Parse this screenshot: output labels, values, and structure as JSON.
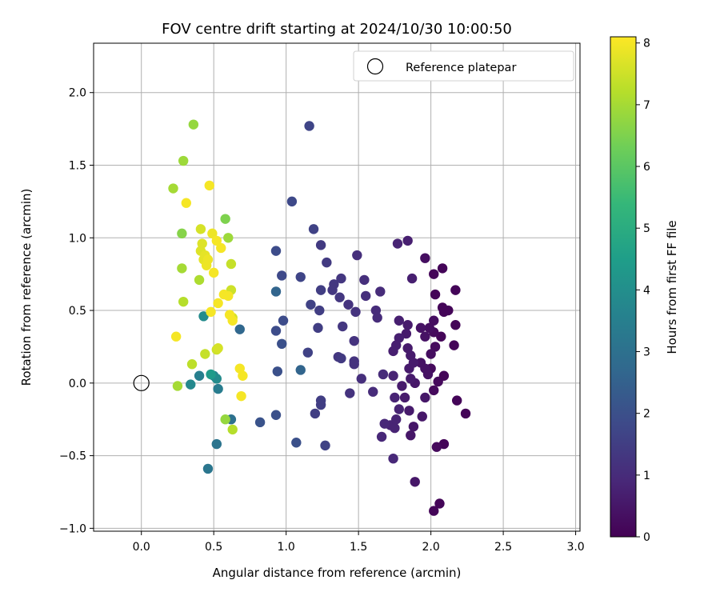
{
  "chart_data": {
    "type": "scatter",
    "title": "FOV centre drift starting at 2024/10/30 10:00:50",
    "xlabel": "Angular distance from reference (arcmin)",
    "ylabel": "Rotation from reference (arcmin)",
    "xlim": [
      -0.33,
      3.03
    ],
    "ylim": [
      -1.02,
      2.34
    ],
    "xticks": [
      "0.0",
      "0.5",
      "1.0",
      "1.5",
      "2.0",
      "2.5",
      "3.0"
    ],
    "yticks": [
      "−1.0",
      "−0.5",
      "0.0",
      "0.5",
      "1.0",
      "1.5",
      "2.0"
    ],
    "grid": true,
    "legend": {
      "position": "top-right",
      "entries": [
        "Reference platepar"
      ]
    },
    "reference": {
      "x": 0.0,
      "y": 0.0
    },
    "colorbar": {
      "label": "Hours from first FF file",
      "colormap": "viridis",
      "range": [
        0,
        8.1
      ],
      "ticks": [
        "0",
        "1",
        "2",
        "3",
        "4",
        "5",
        "6",
        "7",
        "8"
      ]
    },
    "colormap_stops": [
      "#440154",
      "#482878",
      "#3e4989",
      "#31688e",
      "#26828e",
      "#1f9e89",
      "#35b779",
      "#6ece58",
      "#b5de2b",
      "#fde725"
    ],
    "points": [
      {
        "x": 2.02,
        "y": -0.88,
        "h": 0.1
      },
      {
        "x": 2.06,
        "y": -0.83,
        "h": 0.1
      },
      {
        "x": 2.09,
        "y": -0.42,
        "h": 0.1
      },
      {
        "x": 2.04,
        "y": -0.44,
        "h": 0.2
      },
      {
        "x": 2.24,
        "y": -0.21,
        "h": 0.1
      },
      {
        "x": 2.18,
        "y": -0.12,
        "h": 0.1
      },
      {
        "x": 2.02,
        "y": -0.05,
        "h": 0.2
      },
      {
        "x": 2.05,
        "y": 0.01,
        "h": 0.2
      },
      {
        "x": 2.09,
        "y": 0.05,
        "h": 0.1
      },
      {
        "x": 2.0,
        "y": 0.1,
        "h": 0.2
      },
      {
        "x": 2.03,
        "y": 0.25,
        "h": 0.2
      },
      {
        "x": 2.07,
        "y": 0.32,
        "h": 0.1
      },
      {
        "x": 2.02,
        "y": 0.35,
        "h": 0.2
      },
      {
        "x": 2.16,
        "y": 0.26,
        "h": 0.1
      },
      {
        "x": 2.17,
        "y": 0.4,
        "h": 0.1
      },
      {
        "x": 2.12,
        "y": 0.5,
        "h": 0.1
      },
      {
        "x": 2.08,
        "y": 0.52,
        "h": 0.1
      },
      {
        "x": 2.09,
        "y": 0.49,
        "h": 0.1
      },
      {
        "x": 2.17,
        "y": 0.64,
        "h": 0.1
      },
      {
        "x": 2.03,
        "y": 0.61,
        "h": 0.1
      },
      {
        "x": 2.02,
        "y": 0.75,
        "h": 0.1
      },
      {
        "x": 2.08,
        "y": 0.79,
        "h": 0.1
      },
      {
        "x": 1.96,
        "y": 0.86,
        "h": 0.3
      },
      {
        "x": 1.99,
        "y": 0.38,
        "h": 0.3
      },
      {
        "x": 2.02,
        "y": 0.43,
        "h": 0.3
      },
      {
        "x": 1.93,
        "y": 0.38,
        "h": 0.4
      },
      {
        "x": 1.96,
        "y": 0.32,
        "h": 0.4
      },
      {
        "x": 2.0,
        "y": 0.2,
        "h": 0.3
      },
      {
        "x": 1.98,
        "y": 0.06,
        "h": 0.4
      },
      {
        "x": 1.96,
        "y": 0.1,
        "h": 0.4
      },
      {
        "x": 1.93,
        "y": 0.14,
        "h": 0.4
      },
      {
        "x": 1.96,
        "y": -0.1,
        "h": 0.5
      },
      {
        "x": 1.89,
        "y": 0.0,
        "h": 0.5
      },
      {
        "x": 1.89,
        "y": -0.68,
        "h": 0.5
      },
      {
        "x": 1.94,
        "y": -0.23,
        "h": 0.5
      },
      {
        "x": 1.86,
        "y": -0.36,
        "h": 0.5
      },
      {
        "x": 1.88,
        "y": -0.3,
        "h": 0.5
      },
      {
        "x": 1.85,
        "y": -0.19,
        "h": 0.6
      },
      {
        "x": 1.82,
        "y": -0.1,
        "h": 0.6
      },
      {
        "x": 1.8,
        "y": -0.02,
        "h": 0.6
      },
      {
        "x": 1.86,
        "y": 0.03,
        "h": 0.6
      },
      {
        "x": 1.85,
        "y": 0.1,
        "h": 0.6
      },
      {
        "x": 1.88,
        "y": 0.14,
        "h": 0.6
      },
      {
        "x": 1.84,
        "y": 0.24,
        "h": 0.6
      },
      {
        "x": 1.86,
        "y": 0.19,
        "h": 0.6
      },
      {
        "x": 1.83,
        "y": 0.34,
        "h": 0.6
      },
      {
        "x": 1.84,
        "y": 0.4,
        "h": 0.6
      },
      {
        "x": 1.78,
        "y": 0.31,
        "h": 0.7
      },
      {
        "x": 1.76,
        "y": 0.26,
        "h": 0.7
      },
      {
        "x": 1.74,
        "y": 0.22,
        "h": 0.7
      },
      {
        "x": 1.78,
        "y": 0.43,
        "h": 0.7
      },
      {
        "x": 1.87,
        "y": 0.72,
        "h": 0.7
      },
      {
        "x": 1.84,
        "y": 0.98,
        "h": 0.7
      },
      {
        "x": 1.77,
        "y": 0.96,
        "h": 0.8
      },
      {
        "x": 1.74,
        "y": 0.05,
        "h": 0.8
      },
      {
        "x": 1.75,
        "y": -0.1,
        "h": 0.8
      },
      {
        "x": 1.78,
        "y": -0.18,
        "h": 0.8
      },
      {
        "x": 1.72,
        "y": -0.29,
        "h": 0.8
      },
      {
        "x": 1.76,
        "y": -0.25,
        "h": 0.8
      },
      {
        "x": 1.75,
        "y": -0.31,
        "h": 0.8
      },
      {
        "x": 1.74,
        "y": -0.52,
        "h": 0.9
      },
      {
        "x": 1.66,
        "y": -0.37,
        "h": 0.9
      },
      {
        "x": 1.68,
        "y": -0.28,
        "h": 0.9
      },
      {
        "x": 1.67,
        "y": 0.06,
        "h": 1.0
      },
      {
        "x": 1.6,
        "y": -0.06,
        "h": 1.0
      },
      {
        "x": 1.62,
        "y": 0.5,
        "h": 1.0
      },
      {
        "x": 1.63,
        "y": 0.45,
        "h": 1.0
      },
      {
        "x": 1.65,
        "y": 0.63,
        "h": 1.0
      },
      {
        "x": 1.55,
        "y": 0.6,
        "h": 1.1
      },
      {
        "x": 1.54,
        "y": 0.71,
        "h": 1.1
      },
      {
        "x": 1.49,
        "y": 0.88,
        "h": 1.1
      },
      {
        "x": 1.52,
        "y": 0.03,
        "h": 1.1
      },
      {
        "x": 1.47,
        "y": 0.15,
        "h": 1.2
      },
      {
        "x": 1.47,
        "y": 0.29,
        "h": 1.2
      },
      {
        "x": 1.44,
        "y": -0.07,
        "h": 1.2
      },
      {
        "x": 1.47,
        "y": 0.13,
        "h": 1.2
      },
      {
        "x": 1.43,
        "y": 0.54,
        "h": 1.2
      },
      {
        "x": 1.48,
        "y": 0.49,
        "h": 1.2
      },
      {
        "x": 1.38,
        "y": 0.72,
        "h": 1.3
      },
      {
        "x": 1.37,
        "y": 0.59,
        "h": 1.3
      },
      {
        "x": 1.32,
        "y": 0.64,
        "h": 1.3
      },
      {
        "x": 1.33,
        "y": 0.68,
        "h": 1.3
      },
      {
        "x": 1.36,
        "y": 0.18,
        "h": 1.3
      },
      {
        "x": 1.39,
        "y": 0.39,
        "h": 1.3
      },
      {
        "x": 1.38,
        "y": 0.17,
        "h": 1.4
      },
      {
        "x": 1.28,
        "y": 0.83,
        "h": 1.4
      },
      {
        "x": 1.24,
        "y": 0.95,
        "h": 1.4
      },
      {
        "x": 1.24,
        "y": 0.64,
        "h": 1.5
      },
      {
        "x": 1.23,
        "y": 0.5,
        "h": 1.5
      },
      {
        "x": 1.22,
        "y": 0.38,
        "h": 1.5
      },
      {
        "x": 1.24,
        "y": -0.12,
        "h": 1.5
      },
      {
        "x": 1.24,
        "y": -0.15,
        "h": 1.5
      },
      {
        "x": 1.2,
        "y": -0.21,
        "h": 1.5
      },
      {
        "x": 1.27,
        "y": -0.43,
        "h": 1.6
      },
      {
        "x": 1.17,
        "y": 0.54,
        "h": 1.6
      },
      {
        "x": 1.15,
        "y": 0.21,
        "h": 1.6
      },
      {
        "x": 1.19,
        "y": 1.06,
        "h": 1.6
      },
      {
        "x": 1.16,
        "y": 1.77,
        "h": 1.7
      },
      {
        "x": 1.1,
        "y": 0.73,
        "h": 1.7
      },
      {
        "x": 1.04,
        "y": 1.25,
        "h": 1.8
      },
      {
        "x": 0.97,
        "y": 0.74,
        "h": 1.8
      },
      {
        "x": 0.93,
        "y": 0.91,
        "h": 1.9
      },
      {
        "x": 0.98,
        "y": 0.43,
        "h": 1.9
      },
      {
        "x": 0.93,
        "y": 0.36,
        "h": 1.9
      },
      {
        "x": 0.97,
        "y": 0.27,
        "h": 2.0
      },
      {
        "x": 0.94,
        "y": 0.08,
        "h": 2.0
      },
      {
        "x": 0.93,
        "y": -0.22,
        "h": 2.0
      },
      {
        "x": 1.07,
        "y": -0.41,
        "h": 2.0
      },
      {
        "x": 0.82,
        "y": -0.27,
        "h": 2.1
      },
      {
        "x": 1.1,
        "y": 0.09,
        "h": 2.6
      },
      {
        "x": 0.93,
        "y": 0.63,
        "h": 2.6
      },
      {
        "x": 0.68,
        "y": 0.37,
        "h": 2.7
      },
      {
        "x": 0.62,
        "y": -0.25,
        "h": 3.0
      },
      {
        "x": 0.52,
        "y": -0.42,
        "h": 3.1
      },
      {
        "x": 0.46,
        "y": -0.59,
        "h": 3.2
      },
      {
        "x": 0.53,
        "y": -0.04,
        "h": 3.4
      },
      {
        "x": 0.5,
        "y": 0.05,
        "h": 3.6
      },
      {
        "x": 0.52,
        "y": 0.03,
        "h": 3.9
      },
      {
        "x": 0.4,
        "y": 0.05,
        "h": 3.5
      },
      {
        "x": 0.34,
        "y": -0.01,
        "h": 3.8
      },
      {
        "x": 0.43,
        "y": 0.46,
        "h": 3.9
      },
      {
        "x": 0.48,
        "y": 0.06,
        "h": 4.4
      },
      {
        "x": 0.58,
        "y": -0.25,
        "h": 6.8
      },
      {
        "x": 0.25,
        "y": -0.02,
        "h": 7.0
      },
      {
        "x": 0.63,
        "y": -0.32,
        "h": 7.2
      },
      {
        "x": 0.35,
        "y": 0.13,
        "h": 7.3
      },
      {
        "x": 0.44,
        "y": 0.2,
        "h": 7.4
      },
      {
        "x": 0.52,
        "y": 0.23,
        "h": 7.5
      },
      {
        "x": 0.53,
        "y": 0.24,
        "h": 7.6
      },
      {
        "x": 0.28,
        "y": 1.03,
        "h": 6.6
      },
      {
        "x": 0.58,
        "y": 1.13,
        "h": 6.5
      },
      {
        "x": 0.36,
        "y": 1.78,
        "h": 6.8
      },
      {
        "x": 0.29,
        "y": 1.53,
        "h": 6.9
      },
      {
        "x": 0.22,
        "y": 1.34,
        "h": 7.0
      },
      {
        "x": 0.6,
        "y": 1.0,
        "h": 6.9
      },
      {
        "x": 0.28,
        "y": 0.79,
        "h": 7.0
      },
      {
        "x": 0.4,
        "y": 0.71,
        "h": 7.1
      },
      {
        "x": 0.29,
        "y": 0.56,
        "h": 7.2
      },
      {
        "x": 0.62,
        "y": 0.82,
        "h": 7.4
      },
      {
        "x": 0.62,
        "y": 0.64,
        "h": 7.5
      },
      {
        "x": 0.63,
        "y": 0.45,
        "h": 7.6
      },
      {
        "x": 0.41,
        "y": 1.06,
        "h": 7.6
      },
      {
        "x": 0.42,
        "y": 0.96,
        "h": 7.7
      },
      {
        "x": 0.41,
        "y": 0.91,
        "h": 7.7
      },
      {
        "x": 0.44,
        "y": 0.88,
        "h": 7.8
      },
      {
        "x": 0.43,
        "y": 0.85,
        "h": 7.8
      },
      {
        "x": 0.45,
        "y": 0.81,
        "h": 7.9
      },
      {
        "x": 0.46,
        "y": 0.85,
        "h": 7.9
      },
      {
        "x": 0.49,
        "y": 1.03,
        "h": 7.9
      },
      {
        "x": 0.52,
        "y": 0.98,
        "h": 8.0
      },
      {
        "x": 0.55,
        "y": 0.93,
        "h": 8.0
      },
      {
        "x": 0.5,
        "y": 0.76,
        "h": 8.0
      },
      {
        "x": 0.57,
        "y": 0.61,
        "h": 8.0
      },
      {
        "x": 0.53,
        "y": 0.55,
        "h": 8.0
      },
      {
        "x": 0.48,
        "y": 0.49,
        "h": 8.0
      },
      {
        "x": 0.61,
        "y": 0.47,
        "h": 8.0
      },
      {
        "x": 0.47,
        "y": 1.36,
        "h": 8.0
      },
      {
        "x": 0.31,
        "y": 1.24,
        "h": 8.0
      },
      {
        "x": 0.24,
        "y": 0.32,
        "h": 8.0
      },
      {
        "x": 0.68,
        "y": 0.1,
        "h": 8.0
      },
      {
        "x": 0.7,
        "y": 0.05,
        "h": 8.0
      },
      {
        "x": 0.69,
        "y": -0.09,
        "h": 8.0
      },
      {
        "x": 0.6,
        "y": 0.6,
        "h": 8.0
      },
      {
        "x": 0.63,
        "y": 0.43,
        "h": 8.0
      }
    ]
  }
}
